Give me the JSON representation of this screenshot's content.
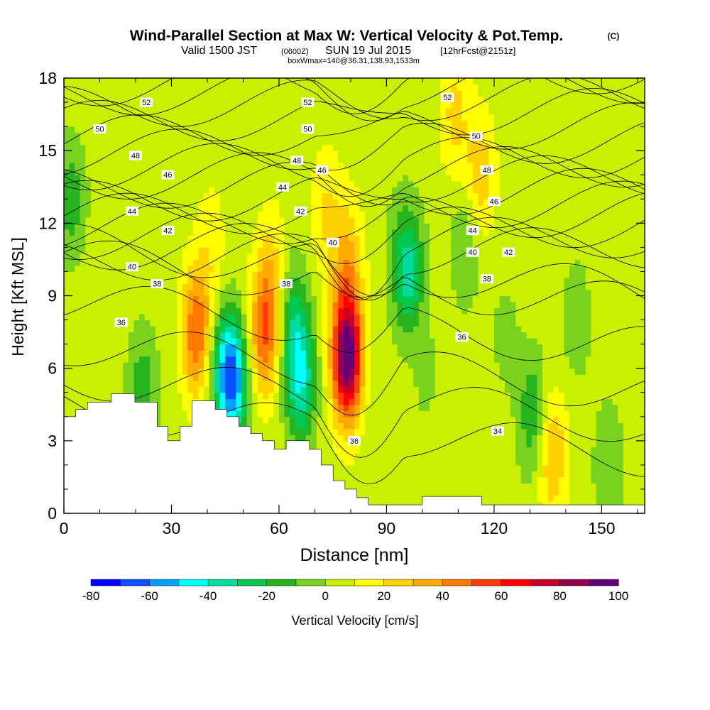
{
  "title": {
    "main": "Wind-Parallel Section at Max W: Vertical Velocity & Pot.Temp.",
    "main_unit": "(C)",
    "line2_a": "Valid 1500 JST",
    "line2_b": "(0600Z)",
    "line2_c": "SUN 19 Jul 2015",
    "line2_d": "[12hrFcst@2151z]",
    "line3": "boxWmax=140@36.31,138.93,1533m"
  },
  "colorbar": {
    "label": "Vertical Velocity [cm/s]",
    "tick_labels": [
      "-80",
      "-60",
      "-40",
      "-20",
      "0",
      "20",
      "40",
      "60",
      "80",
      "100"
    ],
    "levels": [
      -80,
      -70,
      -60,
      -50,
      -40,
      -30,
      -20,
      -10,
      0,
      10,
      20,
      30,
      40,
      50,
      60,
      70,
      80,
      90,
      100
    ],
    "colors": [
      "#0000ff",
      "#0a50ff",
      "#00a0ff",
      "#00ffff",
      "#00dca0",
      "#00c850",
      "#28b41e",
      "#78d21e",
      "#c8f000",
      "#ffff00",
      "#ffd200",
      "#ffaa00",
      "#ff7800",
      "#ff3c00",
      "#ff0000",
      "#c80028",
      "#960050",
      "#640078"
    ]
  },
  "chart_data": {
    "type": "heatmap",
    "description_fields": "filled contours of vertical velocity with potential temperature contour lines",
    "xlabel": "Distance [nm]",
    "ylabel": "Height [Kft MSL]",
    "xlim": [
      0,
      162
    ],
    "ylim": [
      0,
      18
    ],
    "x_ticks": [
      0,
      30,
      60,
      90,
      120,
      150
    ],
    "x_tick_labels": [
      "0",
      "30",
      "60",
      "90",
      "120",
      "150"
    ],
    "y_ticks": [
      0,
      3,
      6,
      9,
      12,
      15,
      18
    ],
    "y_tick_labels": [
      "0",
      "3",
      "6",
      "9",
      "12",
      "15",
      "18"
    ],
    "background_w": 5,
    "cells": [
      {
        "x": 2,
        "y": 13,
        "w": -20
      },
      {
        "x": 4,
        "y": 5,
        "w": 5
      },
      {
        "x": 22,
        "y": 5,
        "w": -22
      },
      {
        "x": 37,
        "y": 7.5,
        "w": 45
      },
      {
        "x": 41,
        "y": 11,
        "w": 12
      },
      {
        "x": 44,
        "y": 6,
        "w": -20
      },
      {
        "x": 47,
        "y": 5.5,
        "w": -62
      },
      {
        "x": 56,
        "y": 7.5,
        "w": 45
      },
      {
        "x": 58,
        "y": 10.2,
        "w": 16
      },
      {
        "x": 64,
        "y": 8,
        "w": -25
      },
      {
        "x": 66,
        "y": 5.5,
        "w": -42
      },
      {
        "x": 79,
        "y": 6.5,
        "w": 95
      },
      {
        "x": 79,
        "y": 10.5,
        "w": 25
      },
      {
        "x": 73,
        "y": 12.5,
        "w": 15
      },
      {
        "x": 87,
        "y": 5,
        "w": -5
      },
      {
        "x": 92,
        "y": 12,
        "w": -3
      },
      {
        "x": 96,
        "y": 10,
        "w": -40
      },
      {
        "x": 102,
        "y": 5,
        "w": -10
      },
      {
        "x": 109,
        "y": 16.5,
        "w": 18
      },
      {
        "x": 116,
        "y": 14,
        "w": 22
      },
      {
        "x": 112,
        "y": 11,
        "w": -15
      },
      {
        "x": 123,
        "y": 7,
        "w": -10
      },
      {
        "x": 131,
        "y": 4,
        "w": -25
      },
      {
        "x": 136,
        "y": 2.5,
        "w": 28
      },
      {
        "x": 143,
        "y": 8,
        "w": -12
      },
      {
        "x": 152,
        "y": 2,
        "w": -15
      },
      {
        "x": 104,
        "y": 3,
        "w": 8
      },
      {
        "x": 120,
        "y": 4.5,
        "w": 3
      }
    ],
    "theta_contours": [
      {
        "label": "34",
        "level": 34,
        "label_x": 121,
        "label_y": 3.4
      },
      {
        "label": "36",
        "level": 36,
        "label_x": 16,
        "label_y": 7.9
      },
      {
        "label": "36",
        "level": 36,
        "label_x": 111,
        "label_y": 7.3
      },
      {
        "label": "36",
        "level": 36,
        "label_x": 81,
        "label_y": 3.0
      },
      {
        "label": "38",
        "level": 38,
        "label_x": 26,
        "label_y": 9.5
      },
      {
        "label": "38",
        "level": 38,
        "label_x": 62,
        "label_y": 9.5
      },
      {
        "label": "38",
        "level": 38,
        "label_x": 118,
        "label_y": 9.7
      },
      {
        "label": "40",
        "level": 40,
        "label_x": 19,
        "label_y": 10.2
      },
      {
        "label": "40",
        "level": 40,
        "label_x": 75,
        "label_y": 11.2
      },
      {
        "label": "40",
        "level": 40,
        "label_x": 114,
        "label_y": 10.8
      },
      {
        "label": "42",
        "level": 42,
        "label_x": 29,
        "label_y": 11.7
      },
      {
        "label": "42",
        "level": 42,
        "label_x": 66,
        "label_y": 12.5
      },
      {
        "label": "42",
        "level": 42,
        "label_x": 124,
        "label_y": 10.8
      },
      {
        "label": "44",
        "level": 44,
        "label_x": 19,
        "label_y": 12.5
      },
      {
        "label": "44",
        "level": 44,
        "label_x": 61,
        "label_y": 13.5
      },
      {
        "label": "44",
        "level": 44,
        "label_x": 114,
        "label_y": 11.7
      },
      {
        "label": "46",
        "level": 46,
        "label_x": 29,
        "label_y": 14.0
      },
      {
        "label": "46",
        "level": 46,
        "label_x": 72,
        "label_y": 14.2
      },
      {
        "label": "46",
        "level": 46,
        "label_x": 120,
        "label_y": 12.9
      },
      {
        "label": "48",
        "level": 48,
        "label_x": 20,
        "label_y": 14.8
      },
      {
        "label": "48",
        "level": 48,
        "label_x": 65,
        "label_y": 14.6
      },
      {
        "label": "48",
        "level": 48,
        "label_x": 118,
        "label_y": 14.2
      },
      {
        "label": "50",
        "level": 50,
        "label_x": 10,
        "label_y": 15.9
      },
      {
        "label": "50",
        "level": 50,
        "label_x": 68,
        "label_y": 15.9
      },
      {
        "label": "50",
        "level": 50,
        "label_x": 115,
        "label_y": 15.6
      },
      {
        "label": "52",
        "level": 52,
        "label_x": 23,
        "label_y": 17.0
      },
      {
        "label": "52",
        "level": 52,
        "label_x": 68,
        "label_y": 17.0
      },
      {
        "label": "52",
        "level": 52,
        "label_x": 107,
        "label_y": 17.2
      }
    ],
    "terrain": [
      [
        0,
        4.0
      ],
      [
        3.3,
        4.0
      ],
      [
        3.3,
        4.3
      ],
      [
        6.6,
        4.3
      ],
      [
        6.6,
        4.6
      ],
      [
        13.2,
        4.6
      ],
      [
        13.2,
        4.95
      ],
      [
        19.8,
        4.95
      ],
      [
        19.8,
        4.6
      ],
      [
        26,
        4.6
      ],
      [
        26,
        3.6
      ],
      [
        29,
        3.6
      ],
      [
        29,
        3.0
      ],
      [
        32.4,
        3.0
      ],
      [
        32.4,
        3.6
      ],
      [
        35.7,
        3.6
      ],
      [
        35.7,
        4.65
      ],
      [
        42.2,
        4.65
      ],
      [
        42.2,
        4.3
      ],
      [
        45.5,
        4.3
      ],
      [
        45.5,
        4.0
      ],
      [
        48.8,
        4.0
      ],
      [
        48.8,
        3.6
      ],
      [
        52.1,
        3.6
      ],
      [
        52.1,
        3.3
      ],
      [
        55.4,
        3.3
      ],
      [
        55.4,
        3.0
      ],
      [
        58.7,
        3.0
      ],
      [
        58.7,
        2.65
      ],
      [
        62,
        2.65
      ],
      [
        62,
        3.0
      ],
      [
        68.5,
        3.0
      ],
      [
        68.5,
        2.65
      ],
      [
        71.8,
        2.65
      ],
      [
        71.8,
        2.0
      ],
      [
        75.1,
        2.0
      ],
      [
        75.1,
        1.35
      ],
      [
        78.4,
        1.35
      ],
      [
        78.4,
        1.0
      ],
      [
        81.7,
        1.0
      ],
      [
        81.7,
        0.65
      ],
      [
        84.9,
        0.65
      ],
      [
        84.9,
        0.35
      ],
      [
        100,
        0.35
      ],
      [
        100,
        0.7
      ],
      [
        116.5,
        0.7
      ],
      [
        116.5,
        0.35
      ],
      [
        162,
        0.35
      ]
    ]
  }
}
